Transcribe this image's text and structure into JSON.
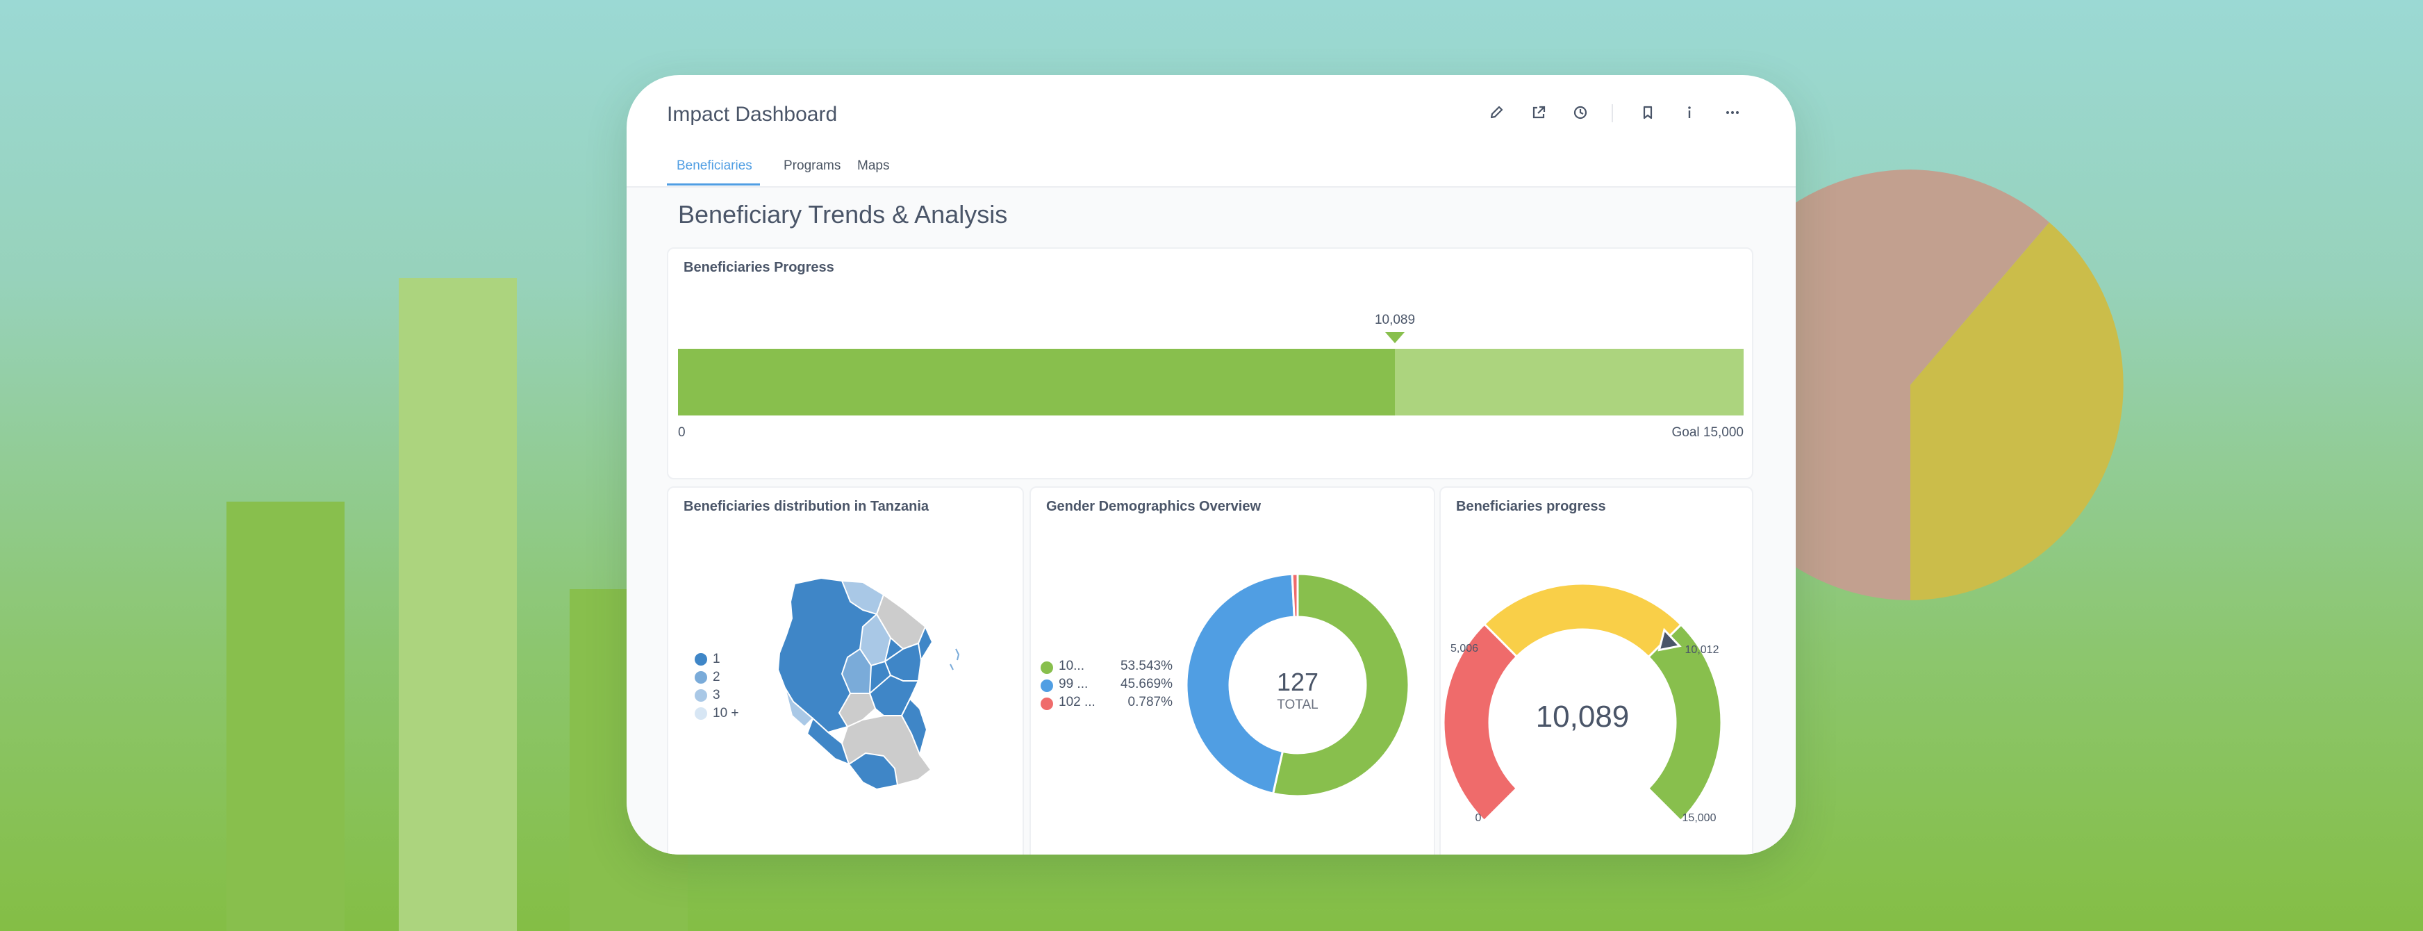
{
  "colors": {
    "accent": "#509ee3",
    "progress_filled": "#88bf4d",
    "progress_remaining": "#acd47e",
    "map_dark": "#3f86c7",
    "map_medium": "#7aabd9",
    "map_light": "#a9c8e6",
    "map_none": "#cccccc",
    "donut_green": "#88bf4d",
    "donut_blue": "#509ee3",
    "donut_red": "#ef6b6b",
    "gauge_red": "#ef6b6b",
    "gauge_yellow": "#f9cf48",
    "gauge_green": "#88bf4d"
  },
  "dashboard": {
    "title": "Impact Dashboard",
    "header_icons": [
      "pencil-icon",
      "share-icon",
      "clock-icon",
      "bookmark-icon",
      "info-icon",
      "more-icon"
    ],
    "tabs": [
      {
        "label": "Beneficiaries",
        "active": true
      },
      {
        "label": "Programs",
        "active": false
      },
      {
        "label": "Maps",
        "active": false
      }
    ],
    "section_title": "Beneficiary Trends & Analysis"
  },
  "progress_panel": {
    "title": "Beneficiaries Progress",
    "value_label": "10,089",
    "min_label": "0",
    "goal_label": "Goal 15,000",
    "value": 10089,
    "goal": 15000
  },
  "map_panel": {
    "title": "Beneficiaries distribution in Tanzania",
    "legend": [
      {
        "label": "1",
        "color": "#3f86c7"
      },
      {
        "label": "2",
        "color": "#7aabd9"
      },
      {
        "label": "3",
        "color": "#a9c8e6"
      },
      {
        "label": "10 +",
        "color": "#d7e6f4"
      }
    ]
  },
  "gender_panel": {
    "title": "Gender Demographics Overview",
    "legend": [
      {
        "label": "10...",
        "pct": "53.543%",
        "color": "#88bf4d"
      },
      {
        "label": "99 ...",
        "pct": "45.669%",
        "color": "#509ee3"
      },
      {
        "label": "102 ...",
        "pct": "0.787%",
        "color": "#ef6b6b"
      }
    ],
    "total_value": "127",
    "total_label": "TOTAL"
  },
  "gauge_panel": {
    "title": "Beneficiaries progress",
    "value_label": "10,089",
    "tick_0": "0",
    "tick_5006": "5,006",
    "tick_10012": "10,012",
    "tick_15000": "15,000"
  },
  "chart_data": [
    {
      "type": "bar",
      "title": "Beneficiaries Progress",
      "categories": [
        "Beneficiaries"
      ],
      "values": [
        10089
      ],
      "goal": 15000,
      "xlim": [
        0,
        15000
      ]
    },
    {
      "type": "pie",
      "title": "Gender Demographics Overview",
      "labels": [
        "10...",
        "99 ...",
        "102 ..."
      ],
      "values": [
        53.543,
        45.669,
        0.787
      ],
      "total": 127
    },
    {
      "type": "gauge",
      "title": "Beneficiaries progress",
      "value": 10089,
      "min": 0,
      "max": 15000,
      "bands": [
        {
          "from": 0,
          "to": 5006,
          "color": "#ef6b6b"
        },
        {
          "from": 5006,
          "to": 10012,
          "color": "#f9cf48"
        },
        {
          "from": 10012,
          "to": 15000,
          "color": "#88bf4d"
        }
      ]
    }
  ]
}
